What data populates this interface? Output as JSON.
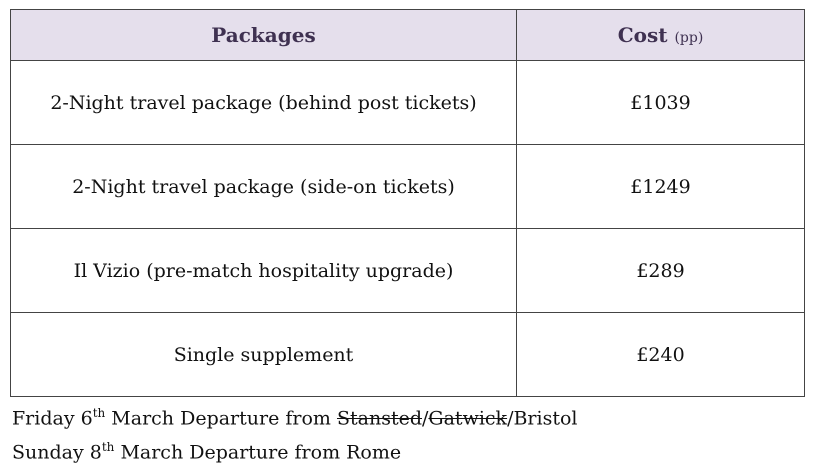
{
  "table": {
    "headers": {
      "packages": "Packages",
      "cost": "Cost",
      "cost_unit": "(pp)"
    },
    "rows": [
      {
        "package": "2-Night travel package (behind post tickets)",
        "cost": "£1039"
      },
      {
        "package": "2-Night travel package (side-on tickets)",
        "cost": "£1249"
      },
      {
        "package": "Il Vizio (pre-match hospitality upgrade)",
        "cost": "£289"
      },
      {
        "package": "Single supplement",
        "cost": "£240"
      }
    ],
    "header_bg": "#e5dfec",
    "header_text_color": "#3f3151"
  },
  "notes": {
    "line1": {
      "day": "Friday 6",
      "sup": "th",
      "rest": " March Departure from ",
      "struck1": "Stansted",
      "sep1": "/",
      "struck2": "Gatwick",
      "sep2": "/",
      "end": "Bristol"
    },
    "line2": {
      "day": "Sunday 8",
      "sup": "th",
      "rest": " March Departure from Rome"
    }
  }
}
